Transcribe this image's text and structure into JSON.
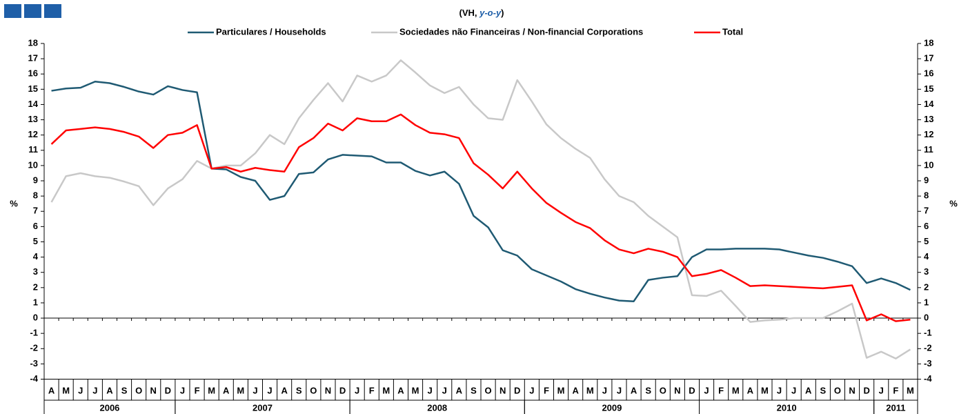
{
  "chart_data": {
    "type": "line",
    "title": {
      "prefix": "(VH, ",
      "italic": "y-o-y",
      "suffix": ")"
    },
    "ylabel": "%",
    "y2label": "%",
    "categories": [
      "A",
      "M",
      "J",
      "J",
      "A",
      "S",
      "O",
      "N",
      "D",
      "J",
      "F",
      "M",
      "A",
      "M",
      "J",
      "J",
      "A",
      "S",
      "O",
      "N",
      "D",
      "J",
      "F",
      "M",
      "A",
      "M",
      "J",
      "J",
      "A",
      "S",
      "O",
      "N",
      "D",
      "J",
      "F",
      "M",
      "A",
      "M",
      "J",
      "J",
      "A",
      "S",
      "O",
      "N",
      "D",
      "J",
      "F",
      "M",
      "A",
      "M",
      "J",
      "J",
      "A",
      "S",
      "O",
      "N",
      "D",
      "J",
      "F",
      "M"
    ],
    "years": [
      "2006",
      "2007",
      "2008",
      "2009",
      "2010",
      "2011"
    ],
    "series": [
      {
        "name": "Particulares / Households",
        "color": "#1f5a73",
        "values": [
          14.9,
          15.05,
          15.1,
          15.5,
          15.4,
          15.15,
          14.85,
          14.65,
          15.2,
          14.95,
          14.8,
          9.8,
          9.75,
          9.25,
          9.0,
          7.75,
          8.0,
          9.45,
          9.55,
          10.4,
          10.7,
          10.65,
          10.6,
          10.2,
          10.2,
          9.65,
          9.35,
          9.6,
          8.8,
          6.7,
          5.95,
          4.45,
          4.1,
          3.2,
          2.8,
          2.4,
          1.9,
          1.6,
          1.35,
          1.15,
          1.1,
          2.5,
          2.65,
          2.75,
          4.0,
          4.5,
          4.5,
          4.55,
          4.55,
          4.55,
          4.5,
          4.3,
          4.1,
          3.95,
          3.7,
          3.4,
          2.3,
          2.6,
          2.3,
          1.85
        ]
      },
      {
        "name": "Sociedades não Financeiras / Non-financial Corporations",
        "color": "#c8c8c8",
        "values": [
          7.6,
          9.3,
          9.5,
          9.3,
          9.2,
          8.95,
          8.65,
          7.4,
          8.5,
          9.1,
          10.3,
          9.8,
          10.0,
          10.0,
          10.8,
          12.0,
          11.4,
          13.1,
          14.3,
          15.4,
          14.2,
          15.9,
          15.5,
          15.9,
          16.9,
          16.1,
          15.25,
          14.75,
          15.15,
          14.0,
          13.1,
          13.0,
          15.6,
          14.2,
          12.7,
          11.8,
          11.1,
          10.5,
          9.1,
          8.0,
          7.6,
          6.7,
          6.0,
          5.3,
          1.5,
          1.45,
          1.8,
          0.8,
          -0.25,
          -0.15,
          -0.1,
          0,
          0,
          0,
          0.45,
          0.95,
          -2.6,
          -2.2,
          -2.65,
          -2.05
        ]
      },
      {
        "name": "Total",
        "color": "#ff0000",
        "values": [
          11.4,
          12.3,
          12.4,
          12.5,
          12.4,
          12.2,
          11.9,
          11.15,
          12.0,
          12.15,
          12.65,
          9.8,
          9.9,
          9.6,
          9.85,
          9.7,
          9.6,
          11.2,
          11.8,
          12.75,
          12.3,
          13.1,
          12.9,
          12.9,
          13.35,
          12.65,
          12.15,
          12.05,
          11.8,
          10.15,
          9.4,
          8.5,
          9.6,
          8.5,
          7.55,
          6.9,
          6.3,
          5.9,
          5.1,
          4.5,
          4.25,
          4.55,
          4.35,
          4.0,
          2.75,
          2.9,
          3.15,
          2.65,
          2.1,
          2.15,
          2.1,
          2.05,
          2.0,
          1.95,
          2.05,
          2.15,
          -0.15,
          0.25,
          -0.2,
          -0.1
        ]
      }
    ],
    "ylim": [
      -4,
      18
    ],
    "yticks": [
      -4,
      -3,
      -2,
      -1,
      0,
      1,
      2,
      3,
      4,
      5,
      6,
      7,
      8,
      9,
      10,
      11,
      12,
      13,
      14,
      15,
      16,
      17,
      18
    ],
    "y2lim": [
      -4,
      18
    ],
    "y2ticks": [
      -4,
      -3,
      -2,
      -1,
      0,
      1,
      2,
      3,
      4,
      5,
      6,
      7,
      8,
      9,
      10,
      11,
      12,
      13,
      14,
      15,
      16,
      17,
      18
    ]
  }
}
